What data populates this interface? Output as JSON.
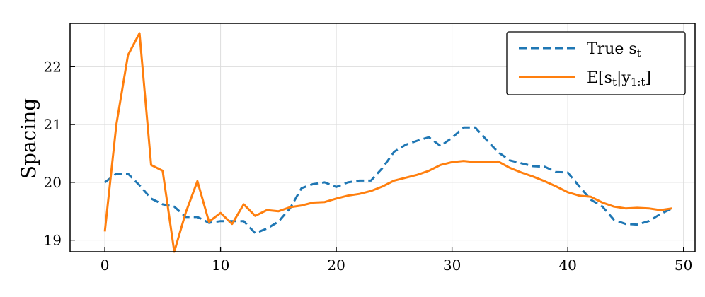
{
  "chart_data": {
    "type": "line",
    "title": "",
    "xlabel": "",
    "ylabel": "Spacing",
    "xlim": [
      -3,
      51
    ],
    "ylim": [
      18.8,
      22.75
    ],
    "xticks": [
      0,
      10,
      20,
      30,
      40,
      50
    ],
    "yticks": [
      19,
      20,
      21,
      22
    ],
    "grid": true,
    "legend_position": "top-right",
    "series": [
      {
        "name": "True s_t",
        "legend_main": "True s",
        "legend_sub": "t",
        "color": "#1f77b4",
        "style": "dashed",
        "x": [
          0,
          1,
          2,
          3,
          4,
          5,
          6,
          7,
          8,
          9,
          10,
          11,
          12,
          13,
          14,
          15,
          16,
          17,
          18,
          19,
          20,
          21,
          22,
          23,
          24,
          25,
          26,
          27,
          28,
          29,
          30,
          31,
          32,
          33,
          34,
          35,
          36,
          37,
          38,
          39,
          40,
          41,
          42,
          43,
          44,
          45,
          46,
          47,
          48,
          49
        ],
        "values": [
          20.0,
          20.15,
          20.15,
          19.95,
          19.72,
          19.62,
          19.58,
          19.4,
          19.4,
          19.3,
          19.33,
          19.33,
          19.33,
          19.12,
          19.2,
          19.32,
          19.55,
          19.9,
          19.97,
          20.0,
          19.92,
          20.0,
          20.03,
          20.03,
          20.25,
          20.53,
          20.65,
          20.72,
          20.78,
          20.63,
          20.77,
          20.95,
          20.95,
          20.73,
          20.52,
          20.38,
          20.33,
          20.28,
          20.27,
          20.18,
          20.17,
          19.93,
          19.7,
          19.58,
          19.35,
          19.28,
          19.27,
          19.33,
          19.45,
          19.55
        ]
      },
      {
        "name": "E[s_t|y_1:t]",
        "legend_main_a": "E[s",
        "legend_sub_a": "t",
        "legend_main_b": "|y",
        "legend_sub_b": "1:t",
        "legend_main_c": "]",
        "color": "#ff7f0e",
        "style": "solid",
        "x": [
          0,
          1,
          2,
          3,
          4,
          5,
          6,
          7,
          8,
          9,
          10,
          11,
          12,
          13,
          14,
          15,
          16,
          17,
          18,
          19,
          20,
          21,
          22,
          23,
          24,
          25,
          26,
          27,
          28,
          29,
          30,
          31,
          32,
          33,
          34,
          35,
          36,
          37,
          38,
          39,
          40,
          41,
          42,
          43,
          44,
          45,
          46,
          47,
          48,
          49
        ],
        "values": [
          19.15,
          21.0,
          22.2,
          22.58,
          20.3,
          20.2,
          18.8,
          19.48,
          20.02,
          19.32,
          19.47,
          19.28,
          19.62,
          19.42,
          19.52,
          19.5,
          19.57,
          19.6,
          19.65,
          19.66,
          19.72,
          19.77,
          19.8,
          19.85,
          19.93,
          20.03,
          20.08,
          20.13,
          20.2,
          20.3,
          20.35,
          20.37,
          20.35,
          20.35,
          20.36,
          20.25,
          20.17,
          20.1,
          20.02,
          19.93,
          19.83,
          19.77,
          19.75,
          19.65,
          19.58,
          19.55,
          19.56,
          19.55,
          19.52,
          19.55
        ]
      }
    ]
  }
}
